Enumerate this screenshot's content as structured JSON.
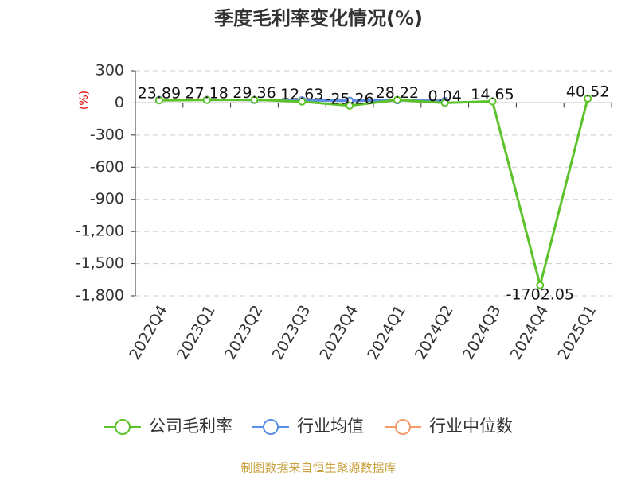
{
  "chart_data": {
    "type": "line",
    "title": "季度毛利率变化情况(%)",
    "y_label": "(%)",
    "categories": [
      "2022Q4",
      "2023Q1",
      "2023Q2",
      "2023Q3",
      "2023Q4",
      "2024Q1",
      "2024Q2",
      "2024Q3",
      "2024Q4",
      "2025Q1"
    ],
    "series": [
      {
        "name": "公司毛利率",
        "color": "#5cc22a",
        "values": [
          23.89,
          27.18,
          29.36,
          12.63,
          -25.26,
          28.22,
          0.04,
          14.65,
          -1702.05,
          40.52
        ],
        "show_labels": true
      },
      {
        "name": "行业均值",
        "color": "#5b8ee6",
        "values": [
          28,
          29,
          27,
          24,
          21,
          24,
          19,
          null,
          null,
          null
        ],
        "show_labels": false
      },
      {
        "name": "行业中位数",
        "color": "#f59a6b",
        "values": [
          30,
          30,
          28,
          25,
          22,
          25,
          20,
          null,
          null,
          null
        ],
        "show_labels": false
      }
    ],
    "ylim": [
      -1800,
      300
    ],
    "yticks": [
      300,
      0,
      -300,
      -600,
      -900,
      {
        "value": -1200,
        "label": "-1,200"
      },
      {
        "value": -1500,
        "label": "-1,500"
      },
      {
        "value": -1800,
        "label": "-1,800"
      }
    ],
    "grid": true,
    "source": "制图数据来自恒生聚源数据库"
  }
}
